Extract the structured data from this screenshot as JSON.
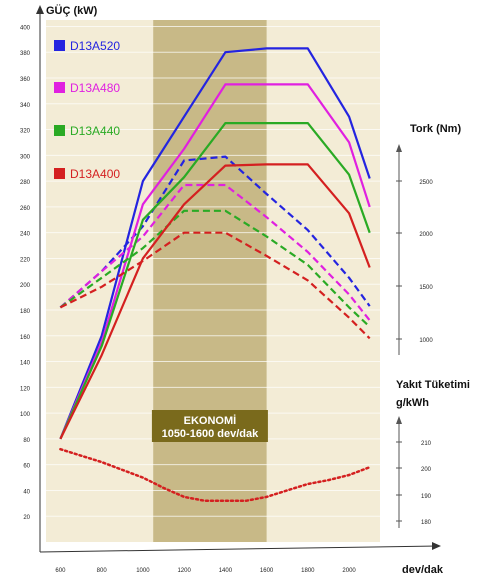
{
  "chart_data": {
    "type": "line",
    "title": "",
    "xlabel": "dev/dak",
    "x": [
      600,
      800,
      1000,
      1200,
      1400,
      1600,
      1800,
      2000,
      2100
    ],
    "xticks": [
      "600",
      "800",
      "1000",
      "1200",
      "1400",
      "1600",
      "1800",
      "2000"
    ],
    "xlim": [
      530,
      2150
    ],
    "power_axis": {
      "label": "GÜÇ (kW)",
      "ylim": [
        0,
        405
      ],
      "ticks": [
        "20",
        "40",
        "60",
        "80",
        "100",
        "120",
        "140",
        "160",
        "180",
        "200",
        "220",
        "240",
        "260",
        "280",
        "300",
        "320",
        "340",
        "360",
        "380",
        "400"
      ]
    },
    "torque_axis": {
      "label": "Tork (Nm)",
      "ticks": [
        "1000",
        "1500",
        "2000",
        "2500"
      ]
    },
    "fuel_axis": {
      "label_line1": "Yakıt Tüketimi",
      "label_line2": "g/kWh",
      "ticks": [
        "180",
        "190",
        "200",
        "210"
      ]
    },
    "band": {
      "line1": "EKONOMİ",
      "line2": "1050-1600 dev/dak",
      "from": 1050,
      "to": 1600,
      "color": "#c8b987"
    },
    "series": [
      {
        "name": "D13A520",
        "color": "#2424e0",
        "power": [
          80,
          160,
          280,
          330,
          380,
          383,
          383,
          330,
          282
        ],
        "torque_pw": [
          182,
          210,
          245,
          296,
          299,
          270,
          242,
          205,
          183
        ]
      },
      {
        "name": "D13A480",
        "color": "#e020e0",
        "power": [
          80,
          155,
          262,
          305,
          355,
          355,
          355,
          310,
          260
        ],
        "torque_pw": [
          182,
          210,
          237,
          277,
          277,
          252,
          225,
          192,
          172
        ]
      },
      {
        "name": "D13A440",
        "color": "#2aaa24",
        "power": [
          80,
          152,
          250,
          283,
          325,
          325,
          325,
          285,
          240
        ],
        "torque_pw": [
          182,
          205,
          228,
          257,
          257,
          237,
          215,
          182,
          167
        ]
      },
      {
        "name": "D13A400",
        "color": "#d42020",
        "power": [
          80,
          145,
          220,
          262,
          292,
          293,
          293,
          255,
          213
        ],
        "torque_pw": [
          182,
          198,
          218,
          240,
          240,
          222,
          203,
          174,
          158
        ]
      }
    ],
    "fuel_curve": {
      "color": "#d42020",
      "x": [
        600,
        800,
        1000,
        1100,
        1200,
        1300,
        1400,
        1500,
        1600,
        1700,
        1800,
        1900,
        2000,
        2100
      ],
      "y_pw": [
        72,
        62,
        50,
        42,
        35,
        32,
        32,
        32,
        35,
        40,
        45,
        48,
        52,
        58
      ]
    }
  }
}
